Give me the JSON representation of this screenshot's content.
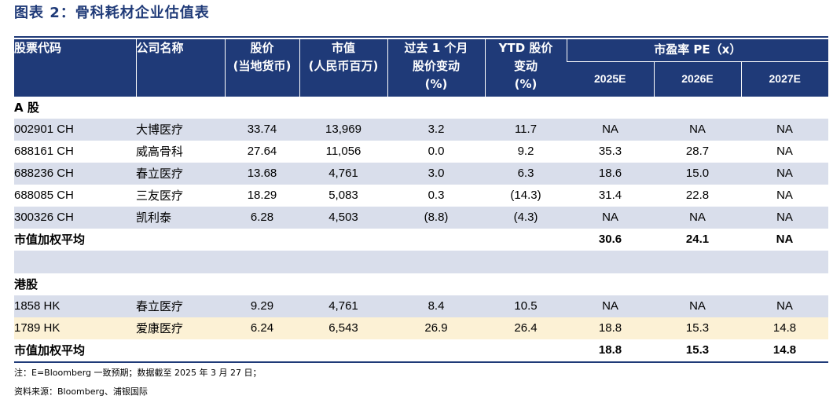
{
  "title": "图表 2：骨科耗材企业估值表",
  "headers": {
    "code": "股票代码",
    "name": "公司名称",
    "price": [
      "股价",
      "(当地货币)"
    ],
    "mktcap": [
      "市值",
      "(人民币百万)"
    ],
    "change1m": [
      "过去 1 个月",
      "股价变动",
      "(%)"
    ],
    "ytd": [
      "YTD 股价",
      "变动",
      "(%)"
    ],
    "pe_group": "市盈率 PE（x）",
    "pe_years": [
      "2025E",
      "2026E",
      "2027E"
    ]
  },
  "sections": [
    {
      "label": "A 股",
      "rows": [
        {
          "code": "002901 CH",
          "name": "大博医疗",
          "price": "33.74",
          "mktcap": "13,969",
          "change1m": "3.2",
          "ytd": "11.7",
          "pe2025": "NA",
          "pe2026": "NA",
          "pe2027": "NA"
        },
        {
          "code": "688161 CH",
          "name": "威高骨科",
          "price": "27.64",
          "mktcap": "11,056",
          "change1m": "0.0",
          "ytd": "9.2",
          "pe2025": "35.3",
          "pe2026": "28.7",
          "pe2027": "NA"
        },
        {
          "code": "688236 CH",
          "name": "春立医疗",
          "price": "13.68",
          "mktcap": "4,761",
          "change1m": "3.0",
          "ytd": "6.3",
          "pe2025": "18.6",
          "pe2026": "15.0",
          "pe2027": "NA"
        },
        {
          "code": "688085 CH",
          "name": "三友医疗",
          "price": "18.29",
          "mktcap": "5,083",
          "change1m": "0.3",
          "ytd": "(14.3)",
          "pe2025": "31.4",
          "pe2026": "22.8",
          "pe2027": "NA"
        },
        {
          "code": "300326 CH",
          "name": "凯利泰",
          "price": "6.28",
          "mktcap": "4,503",
          "change1m": "(8.8)",
          "ytd": "(4.3)",
          "pe2025": "NA",
          "pe2026": "NA",
          "pe2027": "NA"
        }
      ],
      "average": {
        "label": "市值加权平均",
        "pe2025": "30.6",
        "pe2026": "24.1",
        "pe2027": "NA"
      }
    },
    {
      "label": "港股",
      "rows": [
        {
          "code": "1858 HK",
          "name": "春立医疗",
          "price": "9.29",
          "mktcap": "4,761",
          "change1m": "8.4",
          "ytd": "10.5",
          "pe2025": "NA",
          "pe2026": "NA",
          "pe2027": "NA"
        },
        {
          "code": "1789 HK",
          "name": "爱康医疗",
          "price": "6.24",
          "mktcap": "6,543",
          "change1m": "26.9",
          "ytd": "26.4",
          "pe2025": "18.8",
          "pe2026": "15.3",
          "pe2027": "14.8"
        }
      ],
      "average": {
        "label": "市值加权平均",
        "pe2025": "18.8",
        "pe2026": "15.3",
        "pe2027": "14.8"
      }
    }
  ],
  "note": "注：E=Bloomberg 一致预期；数据截至 2025 年 3 月 27 日；",
  "source": "资料来源：Bloomberg、浦银国际",
  "colors": {
    "header_bg": "#1F3A78",
    "shade_bg": "#D9DEEB",
    "highlight_bg": "#FCF1D5"
  }
}
